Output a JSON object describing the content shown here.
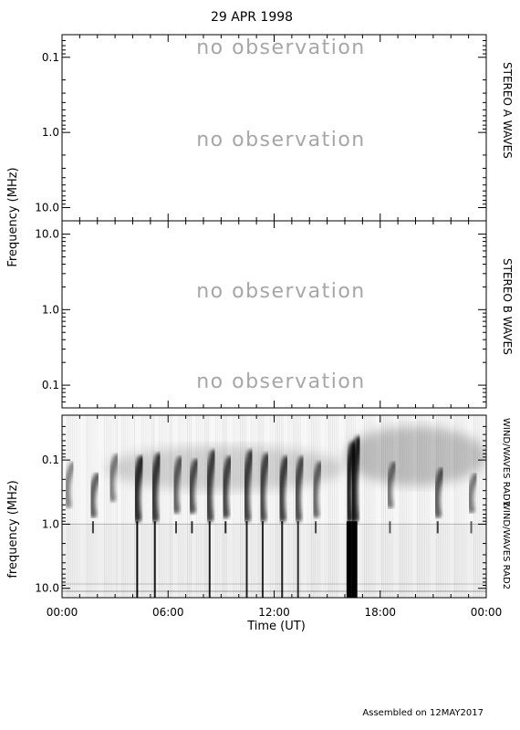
{
  "title": "29 APR 1998",
  "footer": "Assembled on 12MAY2017",
  "colors": {
    "ink": "#000000",
    "no_observation_text": "#a6a6a6"
  },
  "chart_data": [
    {
      "type": "heatmap",
      "panel": "STEREO A WAVES",
      "right_label": "STEREO A WAVES",
      "ylabel": "",
      "yscale": "log",
      "y_direction": "increasing downward",
      "ylim": [
        0.05,
        15
      ],
      "y_ticks": [
        "0.1",
        "1.0",
        "10.0"
      ],
      "annotations": [
        "no observation",
        "no observation"
      ],
      "data": null
    },
    {
      "type": "heatmap",
      "panel": "STEREO B WAVES",
      "right_label": "STEREO B WAVES",
      "ylabel": "",
      "yscale": "log",
      "y_direction": "increasing upward",
      "ylim": [
        0.05,
        15
      ],
      "y_ticks": [
        "10.0",
        "1.0",
        "0.1"
      ],
      "annotations": [
        "no observation",
        "no observation"
      ],
      "data": null
    },
    {
      "type": "heatmap",
      "panel": "WIND WAVES",
      "right_labels": [
        "WIND/WAVES RAD1",
        "WIND/WAVES RAD2"
      ],
      "ylabel": "frequency (MHz)",
      "yscale": "log",
      "y_direction": "increasing downward",
      "ylim": [
        0.02,
        14
      ],
      "y_ticks": [
        "0.1",
        "1.0",
        "10.0"
      ],
      "x_ticks": [
        "00:00",
        "06:00",
        "12:00",
        "18:00",
        "00:00"
      ],
      "xlim_hours": [
        0,
        24
      ],
      "colormap": "white (quiet) to black (intense)",
      "bursts": [
        {
          "t": 0.3,
          "f_top": 0.12,
          "f_bot": 0.5,
          "intensity": 0.35,
          "low_freq_tail": false
        },
        {
          "t": 1.7,
          "f_top": 0.18,
          "f_bot": 0.7,
          "intensity": 0.6,
          "low_freq_tail": true
        },
        {
          "t": 2.8,
          "f_top": 0.09,
          "f_bot": 0.4,
          "intensity": 0.4,
          "low_freq_tail": false
        },
        {
          "t": 4.2,
          "f_top": 0.1,
          "f_bot": 14,
          "intensity": 0.95,
          "low_freq_tail": true
        },
        {
          "t": 5.2,
          "f_top": 0.09,
          "f_bot": 14,
          "intensity": 0.85,
          "low_freq_tail": true
        },
        {
          "t": 6.4,
          "f_top": 0.1,
          "f_bot": 0.6,
          "intensity": 0.6,
          "low_freq_tail": true
        },
        {
          "t": 7.3,
          "f_top": 0.11,
          "f_bot": 0.6,
          "intensity": 0.7,
          "low_freq_tail": true
        },
        {
          "t": 8.3,
          "f_top": 0.08,
          "f_bot": 14,
          "intensity": 0.8,
          "low_freq_tail": true
        },
        {
          "t": 9.2,
          "f_top": 0.1,
          "f_bot": 0.7,
          "intensity": 0.75,
          "low_freq_tail": true
        },
        {
          "t": 10.4,
          "f_top": 0.08,
          "f_bot": 14,
          "intensity": 0.8,
          "low_freq_tail": true
        },
        {
          "t": 11.3,
          "f_top": 0.09,
          "f_bot": 14,
          "intensity": 0.75,
          "low_freq_tail": true
        },
        {
          "t": 12.4,
          "f_top": 0.1,
          "f_bot": 14,
          "intensity": 0.8,
          "low_freq_tail": true
        },
        {
          "t": 13.3,
          "f_top": 0.1,
          "f_bot": 14,
          "intensity": 0.7,
          "low_freq_tail": true
        },
        {
          "t": 14.3,
          "f_top": 0.12,
          "f_bot": 0.7,
          "intensity": 0.55,
          "low_freq_tail": true
        },
        {
          "t": 16.2,
          "f_top": 0.06,
          "f_bot": 14,
          "intensity": 1.0,
          "low_freq_tail": true
        },
        {
          "t": 16.5,
          "f_top": 0.05,
          "f_bot": 14,
          "intensity": 1.0,
          "low_freq_tail": true
        },
        {
          "t": 18.5,
          "f_top": 0.12,
          "f_bot": 0.5,
          "intensity": 0.45,
          "low_freq_tail": true
        },
        {
          "t": 21.2,
          "f_top": 0.15,
          "f_bot": 0.7,
          "intensity": 0.6,
          "low_freq_tail": true
        },
        {
          "t": 23.1,
          "f_top": 0.18,
          "f_bot": 0.6,
          "intensity": 0.45,
          "low_freq_tail": true
        }
      ],
      "diffuse_emission": [
        {
          "t_start": 2.5,
          "t_end": 16.0,
          "f_top": 0.06,
          "f_bot": 0.3,
          "intensity": 0.3
        },
        {
          "t_start": 16.0,
          "t_end": 24.0,
          "f_top": 0.03,
          "f_bot": 0.25,
          "intensity": 0.45
        }
      ]
    }
  ],
  "axes": {
    "shared_ylabel": "Frequency (MHz)",
    "xlabel": "Time (UT)"
  }
}
